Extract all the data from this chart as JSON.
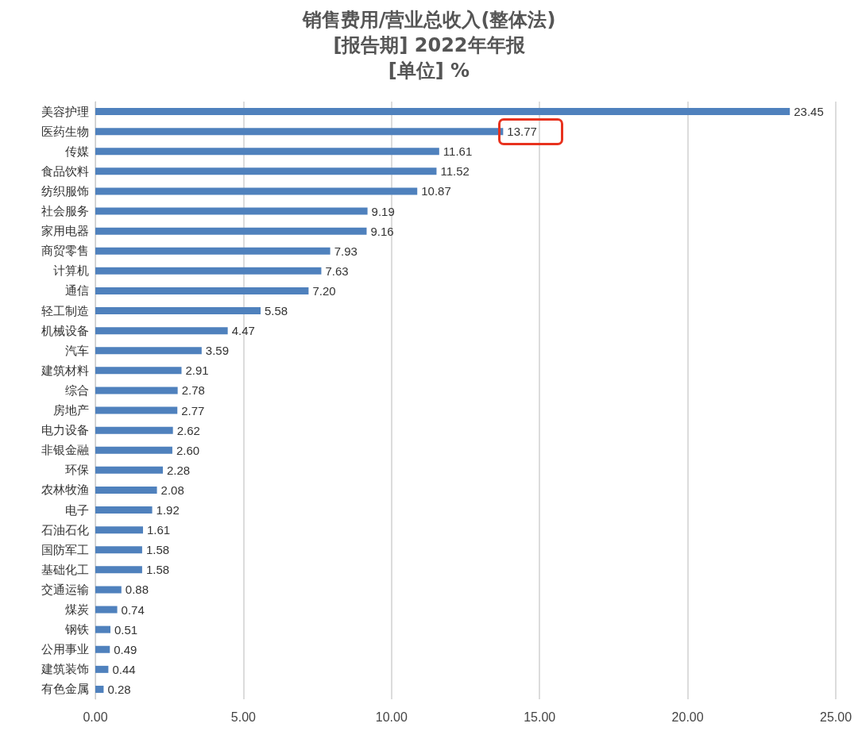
{
  "chart_data": {
    "type": "bar",
    "orientation": "horizontal",
    "title": "销售费用/营业总收入(整体法)",
    "subtitle": "[报告期] 2022年年报\n[单位] %",
    "categories": [
      "美容护理",
      "医药生物",
      "传媒",
      "食品饮料",
      "纺织服饰",
      "社会服务",
      "家用电器",
      "商贸零售",
      "计算机",
      "通信",
      "轻工制造",
      "机械设备",
      "汽车",
      "建筑材料",
      "综合",
      "房地产",
      "电力设备",
      "非银金融",
      "环保",
      "农林牧渔",
      "电子",
      "石油石化",
      "国防军工",
      "基础化工",
      "交通运输",
      "煤炭",
      "钢铁",
      "公用事业",
      "建筑装饰",
      "有色金属"
    ],
    "values": [
      23.45,
      13.77,
      11.61,
      11.52,
      10.87,
      9.19,
      9.16,
      7.93,
      7.63,
      7.2,
      5.58,
      4.47,
      3.59,
      2.91,
      2.78,
      2.77,
      2.62,
      2.6,
      2.28,
      2.08,
      1.92,
      1.61,
      1.58,
      1.58,
      0.88,
      0.74,
      0.51,
      0.49,
      0.44,
      0.28
    ],
    "value_labels": [
      "23.45",
      "13.77",
      "11.61",
      "11.52",
      "10.87",
      "9.19",
      "9.16",
      "7.93",
      "7.63",
      "7.20",
      "5.58",
      "4.47",
      "3.59",
      "2.91",
      "2.78",
      "2.77",
      "2.62",
      "2.60",
      "2.28",
      "2.08",
      "1.92",
      "1.61",
      "1.58",
      "1.58",
      "0.88",
      "0.74",
      "0.51",
      "0.49",
      "0.44",
      "0.28"
    ],
    "color": "#4f81bd",
    "xlim": [
      0,
      25
    ],
    "xticks": [
      {
        "value": 0,
        "label": "0.00"
      },
      {
        "value": 5,
        "label": "5.00"
      },
      {
        "value": 10,
        "label": "10.00"
      },
      {
        "value": 15,
        "label": "15.00"
      },
      {
        "value": 20,
        "label": "20.00"
      },
      {
        "value": 25,
        "label": "25.00"
      }
    ],
    "grid": "x"
  }
}
